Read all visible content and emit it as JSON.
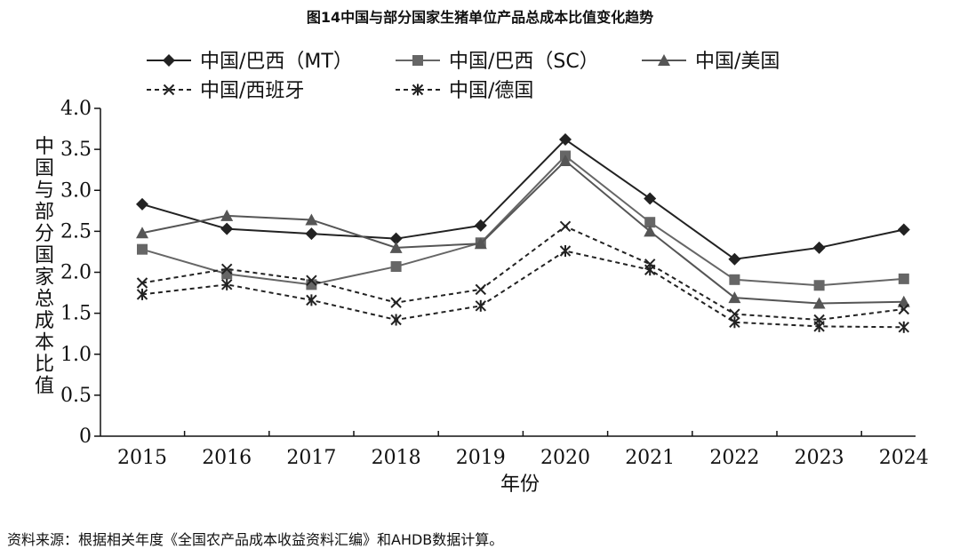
{
  "chart_data": {
    "type": "line",
    "title": "图14中国与部分国家生猪单位产品总成本比值变化趋势",
    "xlabel": "年份",
    "ylabel": "中国与部分国家总成本比值",
    "x": [
      "2015",
      "2016",
      "2017",
      "2018",
      "2019",
      "2020",
      "2021",
      "2022",
      "2023",
      "2024"
    ],
    "ylim": [
      0,
      4.0
    ],
    "yticks": [
      "0",
      "0.5",
      "1.0",
      "1.5",
      "2.0",
      "2.5",
      "3.0",
      "3.5",
      "4.0"
    ],
    "grid": false,
    "legend_position": "top",
    "series": [
      {
        "name": "中国/巴西（MT）",
        "marker": "diamond",
        "dash": "solid",
        "color": "#222222",
        "values": [
          2.83,
          2.53,
          2.47,
          2.41,
          2.57,
          3.62,
          2.9,
          2.16,
          2.3,
          2.52
        ]
      },
      {
        "name": "中国/巴西（SC）",
        "marker": "square",
        "dash": "solid",
        "color": "#666666",
        "values": [
          2.28,
          1.98,
          1.85,
          2.07,
          2.36,
          3.42,
          2.61,
          1.91,
          1.84,
          1.92
        ]
      },
      {
        "name": "中国/美国",
        "marker": "triangle",
        "dash": "solid",
        "color": "#555555",
        "values": [
          2.48,
          2.69,
          2.64,
          2.3,
          2.35,
          3.36,
          2.5,
          1.69,
          1.62,
          1.64
        ]
      },
      {
        "name": "中国/西班牙",
        "marker": "x",
        "dash": "dashed",
        "color": "#222222",
        "values": [
          1.87,
          2.04,
          1.9,
          1.63,
          1.79,
          2.56,
          2.1,
          1.49,
          1.42,
          1.55
        ]
      },
      {
        "name": "中国/德国",
        "marker": "asterisk",
        "dash": "dashed",
        "color": "#222222",
        "values": [
          1.73,
          1.85,
          1.66,
          1.42,
          1.59,
          2.26,
          2.03,
          1.39,
          1.34,
          1.33
        ]
      }
    ]
  },
  "source_note": "资料来源：根据相关年度《全国农产品成本收益资料汇编》和AHDB数据计算。"
}
